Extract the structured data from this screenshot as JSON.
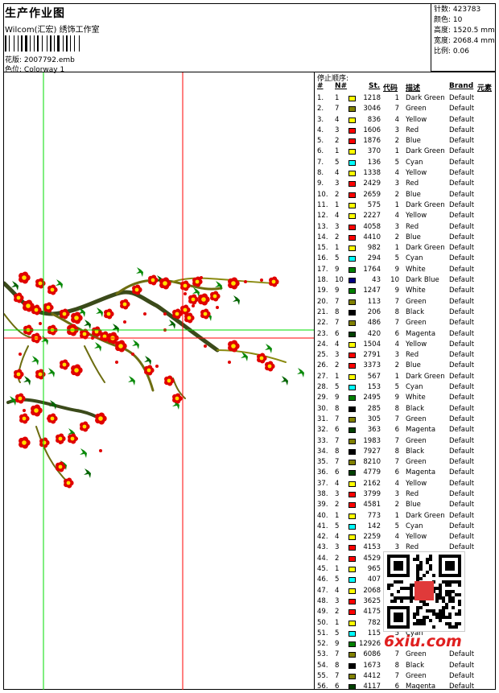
{
  "header": {
    "title": "生产作业图",
    "subtitle": "Wilcom(汇宏) 绣饰工作室",
    "design_label": "花版:",
    "design_value": "2007792.emb",
    "colorway_label": "色位:",
    "colorway_value": "Colorway 1"
  },
  "info": {
    "stitches": "针数: 423783",
    "colors": "颜色: 10",
    "height": "高度: 1520.5 mm",
    "width": "宽度: 2068.4 mm",
    "scale": "比例: 0.06"
  },
  "sequence": {
    "title": "停止顺序:",
    "headers": {
      "idx": "#",
      "n": "N#",
      "st": "St.",
      "code": "代码",
      "desc": "描述",
      "brand": "Brand",
      "element": "元素"
    },
    "rows": [
      {
        "idx": "1.",
        "n": "1",
        "st": "1218",
        "code": "1",
        "desc": "Dark Green",
        "brand": "Default",
        "color": "#ffff00"
      },
      {
        "idx": "2.",
        "n": "7",
        "st": "3046",
        "code": "7",
        "desc": "Green",
        "brand": "Default",
        "color": "#808000"
      },
      {
        "idx": "3.",
        "n": "4",
        "st": "836",
        "code": "4",
        "desc": "Yellow",
        "brand": "Default",
        "color": "#ffff00"
      },
      {
        "idx": "4.",
        "n": "3",
        "st": "1606",
        "code": "3",
        "desc": "Red",
        "brand": "Default",
        "color": "#ff0000"
      },
      {
        "idx": "5.",
        "n": "2",
        "st": "1876",
        "code": "2",
        "desc": "Blue",
        "brand": "Default",
        "color": "#ff0000"
      },
      {
        "idx": "6.",
        "n": "1",
        "st": "370",
        "code": "1",
        "desc": "Dark Green",
        "brand": "Default",
        "color": "#ffff00"
      },
      {
        "idx": "7.",
        "n": "5",
        "st": "136",
        "code": "5",
        "desc": "Cyan",
        "brand": "Default",
        "color": "#00ffff"
      },
      {
        "idx": "8.",
        "n": "4",
        "st": "1338",
        "code": "4",
        "desc": "Yellow",
        "brand": "Default",
        "color": "#ffff00"
      },
      {
        "idx": "9.",
        "n": "3",
        "st": "2429",
        "code": "3",
        "desc": "Red",
        "brand": "Default",
        "color": "#ff0000"
      },
      {
        "idx": "10.",
        "n": "2",
        "st": "2659",
        "code": "2",
        "desc": "Blue",
        "brand": "Default",
        "color": "#ff0000"
      },
      {
        "idx": "11.",
        "n": "1",
        "st": "575",
        "code": "1",
        "desc": "Dark Green",
        "brand": "Default",
        "color": "#ffff00"
      },
      {
        "idx": "12.",
        "n": "4",
        "st": "2227",
        "code": "4",
        "desc": "Yellow",
        "brand": "Default",
        "color": "#ffff00"
      },
      {
        "idx": "13.",
        "n": "3",
        "st": "4058",
        "code": "3",
        "desc": "Red",
        "brand": "Default",
        "color": "#ff0000"
      },
      {
        "idx": "14.",
        "n": "2",
        "st": "4410",
        "code": "2",
        "desc": "Blue",
        "brand": "Default",
        "color": "#ff0000"
      },
      {
        "idx": "15.",
        "n": "1",
        "st": "982",
        "code": "1",
        "desc": "Dark Green",
        "brand": "Default",
        "color": "#ffff00"
      },
      {
        "idx": "16.",
        "n": "5",
        "st": "294",
        "code": "5",
        "desc": "Cyan",
        "brand": "Default",
        "color": "#00ffff"
      },
      {
        "idx": "17.",
        "n": "9",
        "st": "1764",
        "code": "9",
        "desc": "White",
        "brand": "Default",
        "color": "#008000"
      },
      {
        "idx": "18.",
        "n": "10",
        "st": "43",
        "code": "10",
        "desc": "Dark Blue",
        "brand": "Default",
        "color": "#000080"
      },
      {
        "idx": "19.",
        "n": "9",
        "st": "1247",
        "code": "9",
        "desc": "White",
        "brand": "Default",
        "color": "#008000"
      },
      {
        "idx": "20.",
        "n": "7",
        "st": "113",
        "code": "7",
        "desc": "Green",
        "brand": "Default",
        "color": "#808000"
      },
      {
        "idx": "21.",
        "n": "8",
        "st": "206",
        "code": "8",
        "desc": "Black",
        "brand": "Default",
        "color": "#000000"
      },
      {
        "idx": "22.",
        "n": "7",
        "st": "486",
        "code": "7",
        "desc": "Green",
        "brand": "Default",
        "color": "#808000"
      },
      {
        "idx": "23.",
        "n": "6",
        "st": "420",
        "code": "6",
        "desc": "Magenta",
        "brand": "Default",
        "color": "#004000"
      },
      {
        "idx": "24.",
        "n": "4",
        "st": "1504",
        "code": "4",
        "desc": "Yellow",
        "brand": "Default",
        "color": "#ffff00"
      },
      {
        "idx": "25.",
        "n": "3",
        "st": "2791",
        "code": "3",
        "desc": "Red",
        "brand": "Default",
        "color": "#ff0000"
      },
      {
        "idx": "26.",
        "n": "2",
        "st": "3373",
        "code": "2",
        "desc": "Blue",
        "brand": "Default",
        "color": "#ff0000"
      },
      {
        "idx": "27.",
        "n": "1",
        "st": "567",
        "code": "1",
        "desc": "Dark Green",
        "brand": "Default",
        "color": "#ffff00"
      },
      {
        "idx": "28.",
        "n": "5",
        "st": "153",
        "code": "5",
        "desc": "Cyan",
        "brand": "Default",
        "color": "#00ffff"
      },
      {
        "idx": "29.",
        "n": "9",
        "st": "2495",
        "code": "9",
        "desc": "White",
        "brand": "Default",
        "color": "#008000"
      },
      {
        "idx": "30.",
        "n": "8",
        "st": "285",
        "code": "8",
        "desc": "Black",
        "brand": "Default",
        "color": "#000000"
      },
      {
        "idx": "31.",
        "n": "7",
        "st": "305",
        "code": "7",
        "desc": "Green",
        "brand": "Default",
        "color": "#808000"
      },
      {
        "idx": "32.",
        "n": "6",
        "st": "363",
        "code": "6",
        "desc": "Magenta",
        "brand": "Default",
        "color": "#004000"
      },
      {
        "idx": "33.",
        "n": "7",
        "st": "1983",
        "code": "7",
        "desc": "Green",
        "brand": "Default",
        "color": "#808000"
      },
      {
        "idx": "34.",
        "n": "8",
        "st": "7927",
        "code": "8",
        "desc": "Black",
        "brand": "Default",
        "color": "#000000"
      },
      {
        "idx": "35.",
        "n": "7",
        "st": "8210",
        "code": "7",
        "desc": "Green",
        "brand": "Default",
        "color": "#808000"
      },
      {
        "idx": "36.",
        "n": "6",
        "st": "4779",
        "code": "6",
        "desc": "Magenta",
        "brand": "Default",
        "color": "#004000"
      },
      {
        "idx": "37.",
        "n": "4",
        "st": "2162",
        "code": "4",
        "desc": "Yellow",
        "brand": "Default",
        "color": "#ffff00"
      },
      {
        "idx": "38.",
        "n": "3",
        "st": "3799",
        "code": "3",
        "desc": "Red",
        "brand": "Default",
        "color": "#ff0000"
      },
      {
        "idx": "39.",
        "n": "2",
        "st": "4581",
        "code": "2",
        "desc": "Blue",
        "brand": "Default",
        "color": "#ff0000"
      },
      {
        "idx": "40.",
        "n": "1",
        "st": "773",
        "code": "1",
        "desc": "Dark Green",
        "brand": "Default",
        "color": "#ffff00"
      },
      {
        "idx": "41.",
        "n": "5",
        "st": "142",
        "code": "5",
        "desc": "Cyan",
        "brand": "Default",
        "color": "#00ffff"
      },
      {
        "idx": "42.",
        "n": "4",
        "st": "2259",
        "code": "4",
        "desc": "Yellow",
        "brand": "Default",
        "color": "#ffff00"
      },
      {
        "idx": "43.",
        "n": "3",
        "st": "4153",
        "code": "3",
        "desc": "Red",
        "brand": "Default",
        "color": "#ff0000"
      },
      {
        "idx": "44.",
        "n": "2",
        "st": "4529",
        "code": "",
        "desc": "",
        "brand": "",
        "color": "#ff0000"
      },
      {
        "idx": "45.",
        "n": "1",
        "st": "965",
        "code": "",
        "desc": "",
        "brand": "",
        "color": "#ffff00"
      },
      {
        "idx": "46.",
        "n": "5",
        "st": "407",
        "code": "",
        "desc": "",
        "brand": "",
        "color": "#00ffff"
      },
      {
        "idx": "47.",
        "n": "4",
        "st": "2068",
        "code": "",
        "desc": "",
        "brand": "",
        "color": "#ffff00"
      },
      {
        "idx": "48.",
        "n": "3",
        "st": "3625",
        "code": "",
        "desc": "",
        "brand": "",
        "color": "#ff0000"
      },
      {
        "idx": "49.",
        "n": "2",
        "st": "4175",
        "code": "",
        "desc": "",
        "brand": "",
        "color": "#ff0000"
      },
      {
        "idx": "50.",
        "n": "1",
        "st": "782",
        "code": "",
        "desc": "",
        "brand": "",
        "color": "#ffff00"
      },
      {
        "idx": "51.",
        "n": "5",
        "st": "115",
        "code": "5",
        "desc": "Cyan",
        "brand": "",
        "color": "#00ffff"
      },
      {
        "idx": "52.",
        "n": "9",
        "st": "12926",
        "code": "",
        "desc": "",
        "brand": "",
        "color": "#008000"
      },
      {
        "idx": "53.",
        "n": "7",
        "st": "6086",
        "code": "7",
        "desc": "Green",
        "brand": "Default",
        "color": "#808000"
      },
      {
        "idx": "54.",
        "n": "8",
        "st": "1673",
        "code": "8",
        "desc": "Black",
        "brand": "Default",
        "color": "#000000"
      },
      {
        "idx": "55.",
        "n": "7",
        "st": "4412",
        "code": "7",
        "desc": "Green",
        "brand": "Default",
        "color": "#808000"
      },
      {
        "idx": "56.",
        "n": "6",
        "st": "4117",
        "code": "6",
        "desc": "Magenta",
        "brand": "Default",
        "color": "#004000"
      }
    ]
  },
  "watermark": "6xiu.com"
}
